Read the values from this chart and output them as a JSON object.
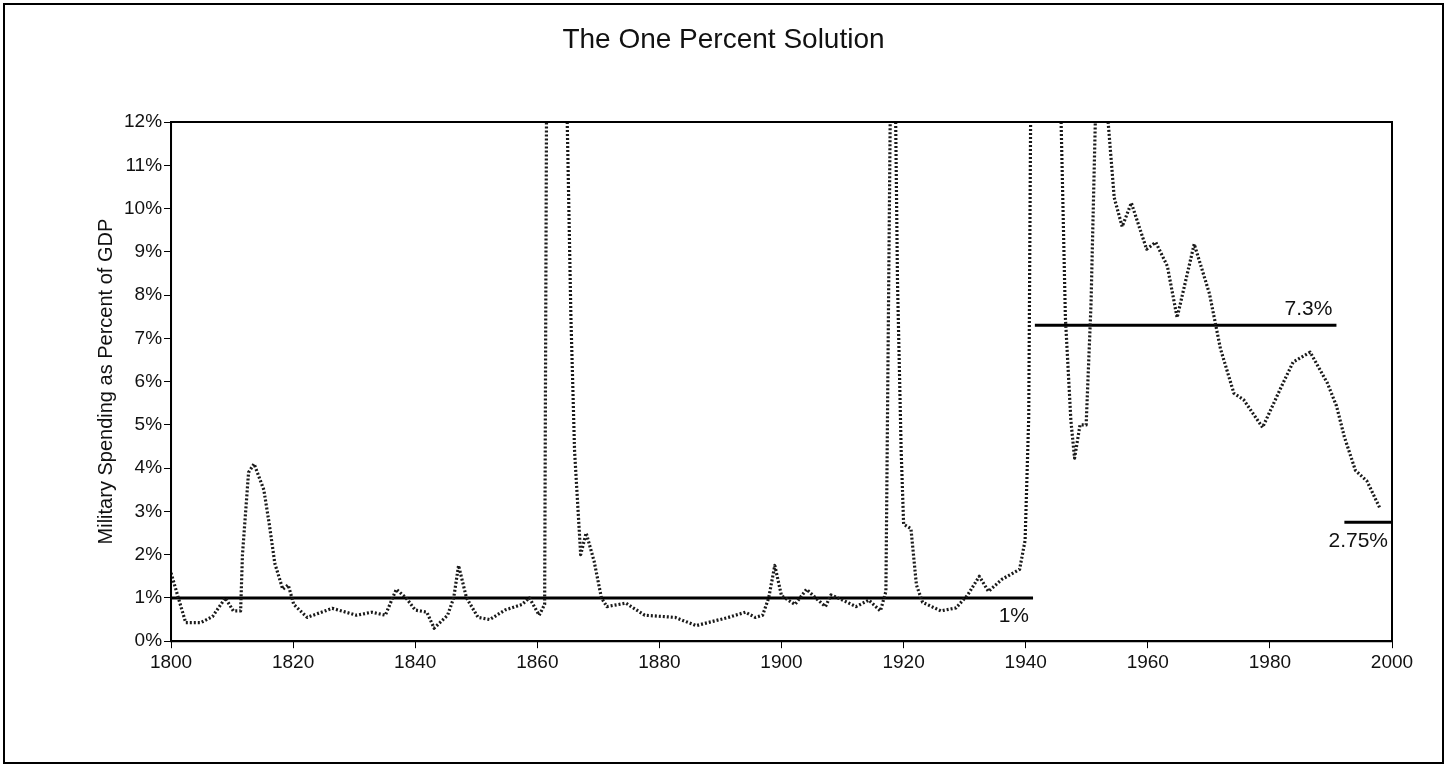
{
  "chart_data": {
    "type": "line",
    "title": "The One Percent Solution",
    "ylabel": "Military Spending as Percent of GDP",
    "xlim": [
      1800,
      2000
    ],
    "xticks": [
      1800,
      1820,
      1840,
      1860,
      1880,
      1900,
      1920,
      1940,
      1960,
      1980,
      2000
    ],
    "ylim": [
      0,
      12
    ],
    "yticks": [
      {
        "value": 0,
        "label": "0%"
      },
      {
        "value": 1,
        "label": "1%"
      },
      {
        "value": 2,
        "label": "2%"
      },
      {
        "value": 3,
        "label": "3%"
      },
      {
        "value": 4,
        "label": "4%"
      },
      {
        "value": 5,
        "label": "5%"
      },
      {
        "value": 6,
        "label": "6%"
      },
      {
        "value": 7,
        "label": "7%"
      },
      {
        "value": 8,
        "label": "8%"
      },
      {
        "value": 9,
        "label": "9%"
      },
      {
        "value": 10,
        "label": "10%"
      },
      {
        "value": 11,
        "label": "11%"
      },
      {
        "value": 12,
        "label": "12%"
      }
    ],
    "legend": false,
    "marker": "none",
    "series": [
      {
        "color": "#1a1a1a",
        "line_style": "dotted",
        "x": [
          1800,
          1801.2,
          1802.4,
          1804.9,
          1806.8,
          1808.9,
          1810.2,
          1811.4,
          1811.7,
          1812.7,
          1813.6,
          1815.2,
          1816.1,
          1817.0,
          1818.3,
          1819.2,
          1820.1,
          1822.3,
          1826.4,
          1830.4,
          1832.9,
          1835.1,
          1836.9,
          1838.5,
          1840.0,
          1841.9,
          1843.1,
          1845.3,
          1846.3,
          1847.1,
          1848.4,
          1850.3,
          1852.2,
          1854.7,
          1857.5,
          1858.7,
          1860.3,
          1861.2,
          1861.5,
          1863,
          1864.9,
          1865.5,
          1866.1,
          1867.1,
          1868.0,
          1869.3,
          1870.5,
          1871.4,
          1874.5,
          1877.6,
          1882.6,
          1886.0,
          1891.3,
          1894.1,
          1895.7,
          1896.9,
          1897.9,
          1898.9,
          1900.0,
          1902.2,
          1904.1,
          1905.6,
          1907.2,
          1908.1,
          1910.0,
          1912.2,
          1914.3,
          1916.2,
          1917.1,
          1917.8,
          1918.2,
          1918.7,
          1919.0,
          1919.6,
          1920.0,
          1921.2,
          1922.1,
          1923.1,
          1926.1,
          1928.6,
          1930.5,
          1932.4,
          1933.9,
          1936.1,
          1939.0,
          1939.9,
          1940.5,
          1940.8,
          1943,
          1945.8,
          1946.5,
          1947.4,
          1948.0,
          1948.9,
          1949.9,
          1950.7,
          1951.4,
          1952.5,
          1953.5,
          1954.5,
          1955.8,
          1957.3,
          1959.8,
          1961.3,
          1963.2,
          1964.8,
          1967.6,
          1970.1,
          1971.9,
          1974.1,
          1975.7,
          1978.8,
          1981.9,
          1983.8,
          1986.6,
          1989.4,
          1990.9,
          1992.2,
          1994.0,
          1995.9,
          1998.1
        ],
        "values": [
          1.58,
          1.0,
          0.43,
          0.43,
          0.57,
          1.0,
          0.7,
          0.7,
          2.0,
          3.9,
          4.1,
          3.5,
          2.7,
          1.8,
          1.2,
          1.3,
          0.85,
          0.55,
          0.76,
          0.6,
          0.67,
          0.6,
          1.2,
          1.0,
          0.72,
          0.67,
          0.3,
          0.6,
          1.0,
          1.75,
          1.0,
          0.55,
          0.5,
          0.72,
          0.85,
          1.0,
          0.6,
          0.85,
          12,
          null,
          12,
          7.5,
          4.4,
          2.0,
          2.5,
          1.85,
          1.0,
          0.8,
          0.88,
          0.6,
          0.55,
          0.36,
          0.55,
          0.67,
          0.55,
          0.6,
          1.0,
          1.75,
          1.05,
          0.85,
          1.2,
          1.0,
          0.8,
          1.07,
          0.95,
          0.8,
          0.95,
          0.7,
          1.15,
          12,
          null,
          12,
          8.3,
          4.4,
          2.7,
          2.6,
          1.3,
          0.9,
          0.7,
          0.77,
          1.07,
          1.5,
          1.15,
          1.43,
          1.66,
          2.33,
          5.2,
          12,
          null,
          12,
          7.48,
          5.1,
          4.23,
          5.0,
          5.0,
          7.8,
          12,
          null,
          12,
          10.25,
          9.58,
          10.13,
          9.06,
          9.22,
          8.67,
          7.48,
          9.18,
          8.03,
          6.76,
          5.73,
          5.58,
          4.94,
          5.89,
          6.45,
          6.68,
          5.97,
          5.44,
          4.72,
          3.95,
          3.7,
          3.05
        ]
      },
      {
        "color": "#000000",
        "line_style": "solid",
        "x": [
          1800,
          1941.2
        ],
        "values": [
          1,
          1
        ]
      },
      {
        "color": "#000000",
        "line_style": "solid",
        "x": [
          1941.5,
          1990.9
        ],
        "values": [
          7.3,
          7.3
        ]
      },
      {
        "color": "#000000",
        "line_style": "solid",
        "x": [
          1992.2,
          2000
        ],
        "values": [
          2.75,
          2.75
        ]
      }
    ],
    "annotations": [
      {
        "text": "1%",
        "x": 1941.2,
        "y": 1
      },
      {
        "text": "7.3%",
        "x": 1990.9,
        "y": 7.3
      },
      {
        "text": "2.75%",
        "x": 2000,
        "y": 2.75
      }
    ]
  }
}
